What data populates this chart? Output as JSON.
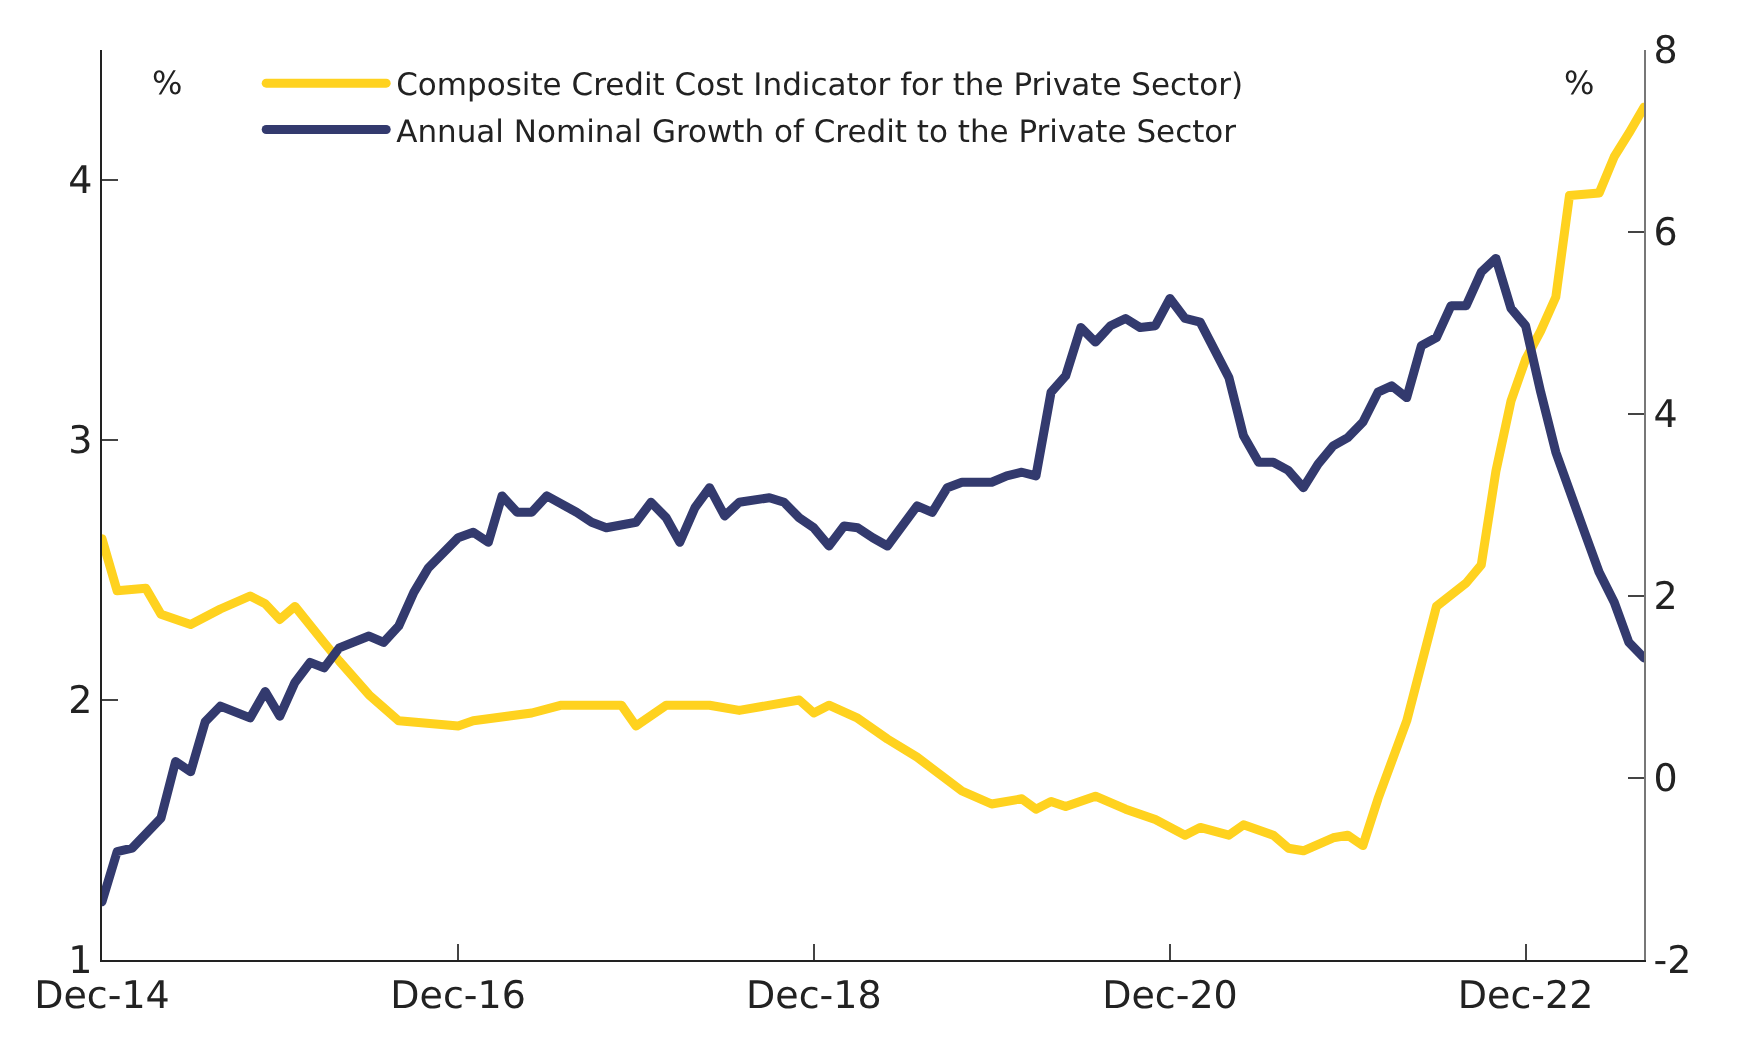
{
  "chart_data": {
    "type": "line",
    "xlim": [
      "2014-12",
      "2023-08"
    ],
    "xticks": [
      {
        "value": "2014-12",
        "label": "Dec-14"
      },
      {
        "value": "2016-12",
        "label": "Dec-16"
      },
      {
        "value": "2018-12",
        "label": "Dec-18"
      },
      {
        "value": "2020-12",
        "label": "Dec-20"
      },
      {
        "value": "2022-12",
        "label": "Dec-22"
      }
    ],
    "ylim": [
      1,
      4.5
    ],
    "yticks": [
      1,
      2,
      3,
      4
    ],
    "y2lim": [
      -2,
      8
    ],
    "y2ticks": [
      -2,
      0,
      2,
      4,
      6,
      8
    ],
    "legend": "top",
    "marker": "none",
    "line_style": "solid",
    "annotations": [
      "%",
      "%"
    ],
    "series": [
      {
        "name": "Composite Credit Cost Indicator for the Private Sector)",
        "color": "#ffd21f",
        "x": [
          "2014-12",
          "2015-01",
          "2015-03",
          "2015-04",
          "2015-06",
          "2015-08",
          "2015-10",
          "2015-11",
          "2015-12",
          "2016-01",
          "2016-03",
          "2016-04",
          "2016-06",
          "2016-08",
          "2016-12",
          "2017-01",
          "2017-05",
          "2017-07",
          "2017-11",
          "2017-12",
          "2018-02",
          "2018-05",
          "2018-07",
          "2018-11",
          "2018-12",
          "2019-01",
          "2019-03",
          "2019-05",
          "2019-07",
          "2019-10",
          "2019-12",
          "2020-02",
          "2020-03",
          "2020-04",
          "2020-05",
          "2020-07",
          "2020-09",
          "2020-11",
          "2021-01",
          "2021-02",
          "2021-04",
          "2021-05",
          "2021-07",
          "2021-08",
          "2021-09",
          "2021-11",
          "2021-12",
          "2022-01",
          "2022-02",
          "2022-04",
          "2022-06",
          "2022-08",
          "2022-09",
          "2022-10",
          "2022-11",
          "2022-12",
          "2023-01",
          "2023-02",
          "2023-03",
          "2023-05",
          "2023-06",
          "2023-07",
          "2023-08"
        ],
        "values": [
          2.62,
          2.42,
          2.43,
          2.33,
          2.29,
          2.35,
          2.4,
          2.37,
          2.31,
          2.36,
          2.22,
          2.15,
          2.02,
          1.92,
          1.9,
          1.92,
          1.95,
          1.98,
          1.98,
          1.9,
          1.98,
          1.98,
          1.96,
          2.0,
          1.95,
          1.98,
          1.93,
          1.85,
          1.78,
          1.65,
          1.6,
          1.62,
          1.58,
          1.61,
          1.59,
          1.63,
          1.58,
          1.54,
          1.48,
          1.51,
          1.48,
          1.52,
          1.48,
          1.43,
          1.42,
          1.47,
          1.48,
          1.44,
          1.62,
          1.92,
          2.36,
          2.45,
          2.52,
          2.88,
          3.15,
          3.31,
          3.42,
          3.55,
          3.94,
          3.95,
          4.09,
          4.18,
          4.28
        ]
      },
      {
        "name": "Annual Nominal Growth of Credit to the Private Sector",
        "color": "#333a6e",
        "axis": "y2",
        "x": [
          "2014-12",
          "2015-01",
          "2015-02",
          "2015-04",
          "2015-05",
          "2015-06",
          "2015-07",
          "2015-08",
          "2015-10",
          "2015-11",
          "2015-12",
          "2016-01",
          "2016-02",
          "2016-03",
          "2016-04",
          "2016-06",
          "2016-07",
          "2016-08",
          "2016-09",
          "2016-10",
          "2016-12",
          "2017-01",
          "2017-02",
          "2017-03",
          "2017-04",
          "2017-05",
          "2017-06",
          "2017-08",
          "2017-09",
          "2017-10",
          "2017-12",
          "2018-01",
          "2018-02",
          "2018-03",
          "2018-04",
          "2018-05",
          "2018-06",
          "2018-07",
          "2018-09",
          "2018-10",
          "2018-11",
          "2018-12",
          "2019-01",
          "2019-02",
          "2019-03",
          "2019-04",
          "2019-05",
          "2019-07",
          "2019-08",
          "2019-09",
          "2019-10",
          "2019-12",
          "2020-01",
          "2020-02",
          "2020-03",
          "2020-04",
          "2020-05",
          "2020-06",
          "2020-07",
          "2020-08",
          "2020-09",
          "2020-10",
          "2020-11",
          "2020-12",
          "2021-01",
          "2021-02",
          "2021-04",
          "2021-05",
          "2021-06",
          "2021-07",
          "2021-08",
          "2021-09",
          "2021-10",
          "2021-11",
          "2021-12",
          "2022-01",
          "2022-02",
          "2022-03",
          "2022-04",
          "2022-05",
          "2022-06",
          "2022-07",
          "2022-08",
          "2022-09",
          "2022-10",
          "2022-11",
          "2022-12",
          "2023-01",
          "2023-02",
          "2023-04",
          "2023-05",
          "2023-06",
          "2023-07",
          "2023-08"
        ],
        "values": [
          -1.36,
          -0.81,
          -0.77,
          -0.44,
          0.18,
          0.07,
          0.62,
          0.79,
          0.66,
          0.95,
          0.68,
          1.05,
          1.27,
          1.21,
          1.43,
          1.56,
          1.49,
          1.67,
          2.04,
          2.31,
          2.64,
          2.7,
          2.59,
          3.1,
          2.92,
          2.92,
          3.1,
          2.92,
          2.81,
          2.75,
          2.81,
          3.03,
          2.86,
          2.59,
          2.97,
          3.19,
          2.88,
          3.03,
          3.08,
          3.03,
          2.86,
          2.75,
          2.55,
          2.77,
          2.75,
          2.64,
          2.55,
          2.99,
          2.92,
          3.19,
          3.25,
          3.25,
          3.32,
          3.36,
          3.32,
          4.24,
          4.42,
          4.95,
          4.79,
          4.97,
          5.05,
          4.95,
          4.97,
          5.27,
          5.05,
          5.01,
          4.4,
          3.76,
          3.47,
          3.47,
          3.38,
          3.19,
          3.45,
          3.65,
          3.74,
          3.91,
          4.24,
          4.31,
          4.18,
          4.75,
          4.84,
          5.19,
          5.19,
          5.56,
          5.71,
          5.16,
          4.97,
          4.24,
          3.58,
          2.7,
          2.26,
          1.93,
          1.49,
          1.32
        ]
      }
    ]
  }
}
